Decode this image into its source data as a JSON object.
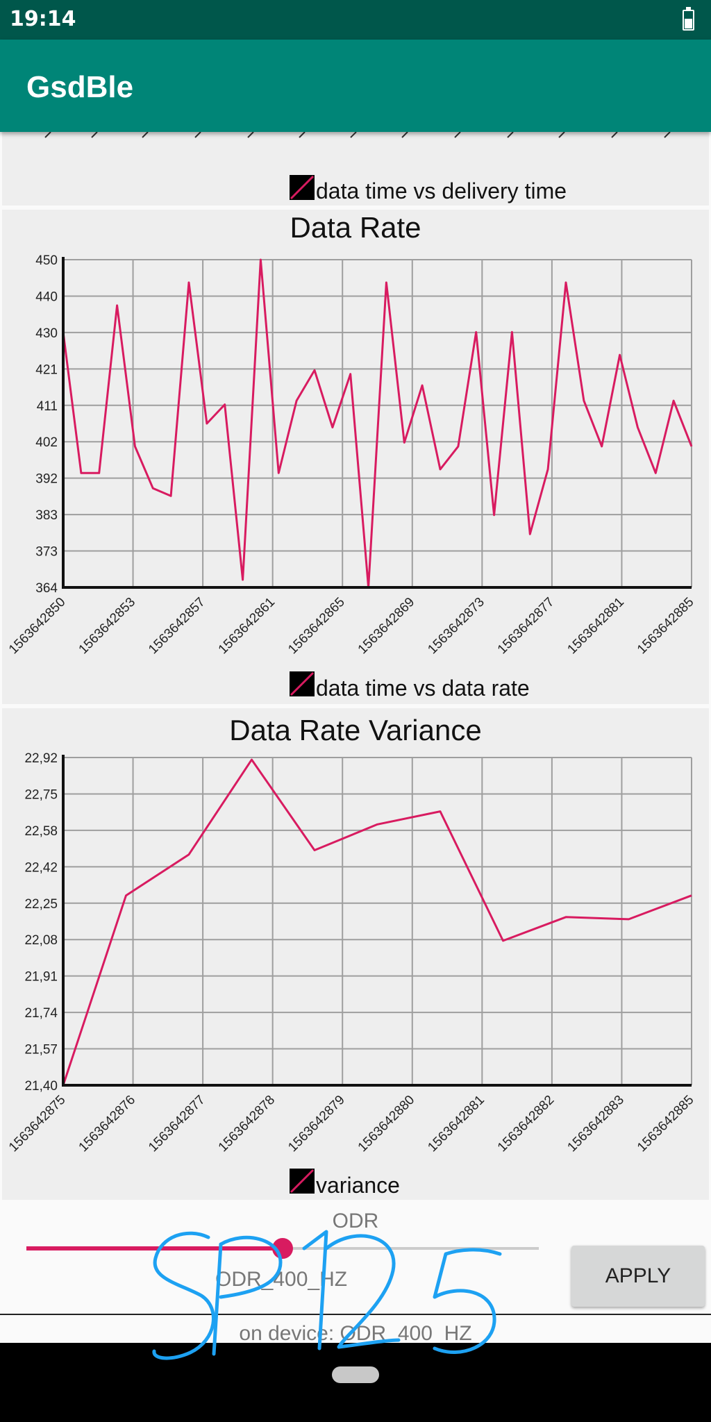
{
  "status_bar": {
    "time": "19:14"
  },
  "app_bar": {
    "title": "GsdBle"
  },
  "top_chart": {
    "legend": "data time vs delivery time"
  },
  "chart_data": [
    {
      "type": "line",
      "title": "Data Rate",
      "legend": "data time vs data rate",
      "series": [
        {
          "name": "data time vs data rate",
          "color": "#d81b60",
          "values": [
            431,
            394,
            394,
            438,
            401,
            390,
            388,
            444,
            407,
            412,
            366,
            450,
            394,
            413,
            421,
            406,
            420,
            364,
            444,
            402,
            417,
            395,
            401,
            431,
            383,
            431,
            378,
            395,
            444,
            413,
            401,
            425,
            406,
            394,
            413,
            401
          ]
        }
      ],
      "x_tick_labels": [
        "1563642850",
        "1563642853",
        "1563642857",
        "1563642861",
        "1563642865",
        "1563642869",
        "1563642873",
        "1563642877",
        "1563642881",
        "1563642885"
      ],
      "y_tick_labels": [
        "450",
        "440",
        "430",
        "421",
        "411",
        "402",
        "392",
        "383",
        "373",
        "364"
      ],
      "ylim": [
        364,
        450
      ],
      "grid": true
    },
    {
      "type": "line",
      "title": "Data Rate Variance",
      "legend": "variance",
      "series": [
        {
          "name": "variance",
          "color": "#d81b60",
          "values": [
            21.4,
            22.28,
            22.47,
            22.91,
            22.49,
            22.61,
            22.67,
            22.07,
            22.18,
            22.17,
            22.28
          ]
        }
      ],
      "x_tick_labels": [
        "1563642875",
        "1563642876",
        "1563642877",
        "1563642878",
        "1563642879",
        "1563642880",
        "1563642881",
        "1563642882",
        "1563642883",
        "1563642885"
      ],
      "y_tick_labels": [
        "22,92",
        "22,75",
        "22,58",
        "22,42",
        "22,25",
        "22,08",
        "21,91",
        "21,74",
        "21,57",
        "21,40"
      ],
      "ylim": [
        21.4,
        22.92
      ],
      "grid": true
    }
  ],
  "controls": {
    "odr_label": "ODR",
    "slider": {
      "value_fraction": 0.5
    },
    "odr_value": "ODR_400_HZ",
    "apply_label": "APPLY",
    "device_text": "on device: ODR_400_HZ"
  },
  "signature_text": "SP1125"
}
